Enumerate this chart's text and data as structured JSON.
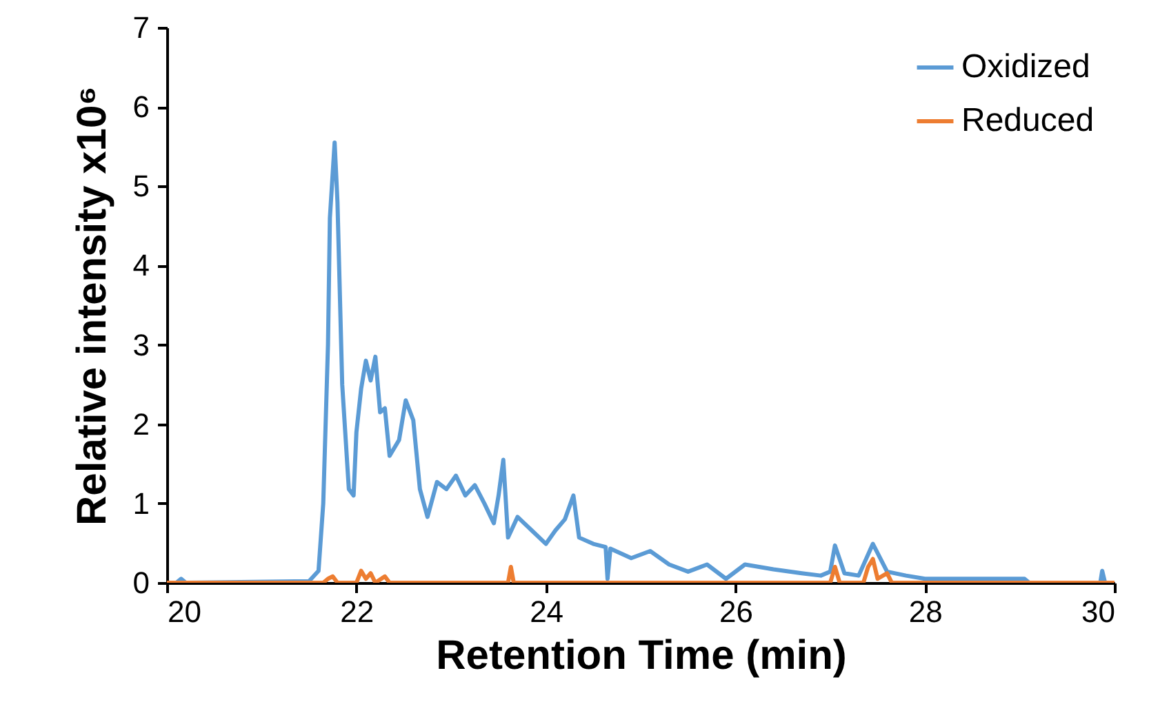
{
  "chart_data": {
    "type": "line",
    "xlabel": "Retention Time (min)",
    "ylabel": "Relative intensity x10⁶",
    "xlim": [
      20,
      30
    ],
    "xticks": [
      20,
      22,
      24,
      26,
      28,
      30
    ],
    "ylim": [
      0,
      7
    ],
    "yticks": [
      0,
      1,
      2,
      3,
      4,
      5,
      6,
      7
    ],
    "grid": false,
    "legend": "top right",
    "line_style": "solid",
    "marker": "none",
    "series": [
      {
        "name": "Oxidized",
        "color": "#5b9bd5",
        "x": [
          20,
          20.1,
          20.15,
          20.2,
          21.5,
          21.6,
          21.65,
          21.7,
          21.72,
          21.77,
          21.8,
          21.85,
          21.92,
          21.97,
          22.0,
          22.05,
          22.1,
          22.15,
          22.2,
          22.25,
          22.3,
          22.35,
          22.45,
          22.52,
          22.6,
          22.67,
          22.75,
          22.85,
          22.95,
          23.05,
          23.15,
          23.25,
          23.35,
          23.45,
          23.5,
          23.55,
          23.6,
          23.7,
          23.85,
          24.0,
          24.1,
          24.2,
          24.29,
          24.35,
          24.5,
          24.63,
          24.65,
          24.68,
          24.9,
          25.1,
          25.3,
          25.5,
          25.7,
          25.9,
          26.1,
          26.4,
          26.7,
          26.9,
          27.0,
          27.05,
          27.15,
          27.3,
          27.45,
          27.6,
          27.8,
          28.0,
          28.5,
          29.05,
          29.1,
          29.85,
          29.87,
          29.9,
          30
        ],
        "values": [
          0,
          0,
          0.05,
          0,
          0.02,
          0.15,
          1.0,
          3.0,
          4.6,
          5.55,
          4.8,
          2.5,
          1.18,
          1.1,
          1.9,
          2.45,
          2.8,
          2.55,
          2.85,
          2.15,
          2.2,
          1.6,
          1.8,
          2.3,
          2.05,
          1.18,
          0.83,
          1.27,
          1.18,
          1.35,
          1.1,
          1.23,
          1.0,
          0.75,
          1.1,
          1.55,
          0.57,
          0.83,
          0.66,
          0.49,
          0.66,
          0.8,
          1.1,
          0.57,
          0.49,
          0.45,
          0.05,
          0.43,
          0.31,
          0.4,
          0.23,
          0.14,
          0.23,
          0.05,
          0.23,
          0.17,
          0.12,
          0.09,
          0.14,
          0.47,
          0.12,
          0.09,
          0.49,
          0.14,
          0.09,
          0.05,
          0.05,
          0.05,
          0,
          0,
          0.15,
          0,
          0
        ]
      },
      {
        "name": "Reduced",
        "color": "#ed7d31",
        "x": [
          20,
          21.65,
          21.7,
          21.75,
          21.8,
          22.0,
          22.05,
          22.1,
          22.15,
          22.2,
          22.3,
          22.35,
          23.6,
          23.63,
          23.66,
          27.0,
          27.05,
          27.1,
          27.35,
          27.4,
          27.45,
          27.5,
          27.6,
          27.65,
          30
        ],
        "values": [
          0,
          0,
          0.05,
          0.08,
          0,
          0,
          0.15,
          0.05,
          0.12,
          0,
          0.08,
          0,
          0,
          0.2,
          0,
          0,
          0.2,
          0,
          0,
          0.2,
          0.3,
          0.05,
          0.12,
          0,
          0
        ]
      }
    ]
  }
}
